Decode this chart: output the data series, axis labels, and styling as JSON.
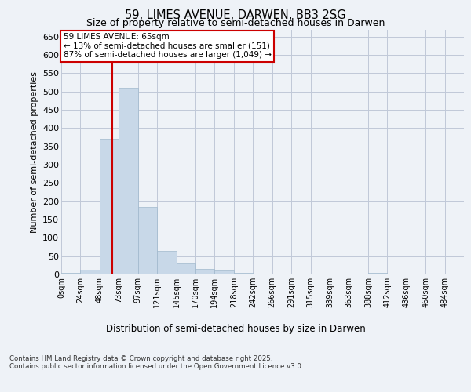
{
  "title_line1": "59, LIMES AVENUE, DARWEN, BB3 2SG",
  "title_line2": "Size of property relative to semi-detached houses in Darwen",
  "xlabel": "Distribution of semi-detached houses by size in Darwen",
  "ylabel": "Number of semi-detached properties",
  "property_label": "59 LIMES AVENUE: 65sqm",
  "annotation_line2": "← 13% of semi-detached houses are smaller (151)",
  "annotation_line3": "87% of semi-detached houses are larger (1,049) →",
  "bin_labels": [
    "0sqm",
    "24sqm",
    "48sqm",
    "73sqm",
    "97sqm",
    "121sqm",
    "145sqm",
    "170sqm",
    "194sqm",
    "218sqm",
    "242sqm",
    "266sqm",
    "291sqm",
    "315sqm",
    "339sqm",
    "363sqm",
    "388sqm",
    "412sqm",
    "436sqm",
    "460sqm",
    "484sqm"
  ],
  "bar_values": [
    5,
    13,
    370,
    510,
    185,
    65,
    30,
    15,
    10,
    5,
    2,
    1,
    1,
    0,
    0,
    0,
    4,
    0,
    0,
    1,
    0
  ],
  "bar_color": "#c8d8e8",
  "bar_edge_color": "#a0b8cc",
  "ylim": [
    0,
    670
  ],
  "yticks": [
    0,
    50,
    100,
    150,
    200,
    250,
    300,
    350,
    400,
    450,
    500,
    550,
    600,
    650
  ],
  "background_color": "#eef2f7",
  "plot_bg_color": "#eef2f7",
  "grid_color": "#c0c8d8",
  "footer": "Contains HM Land Registry data © Crown copyright and database right 2025.\nContains public sector information licensed under the Open Government Licence v3.0.",
  "annotation_box_color": "#ffffff",
  "annotation_box_edge": "#cc0000",
  "red_line_color": "#cc0000",
  "title1_fontsize": 10.5,
  "title2_fontsize": 9
}
